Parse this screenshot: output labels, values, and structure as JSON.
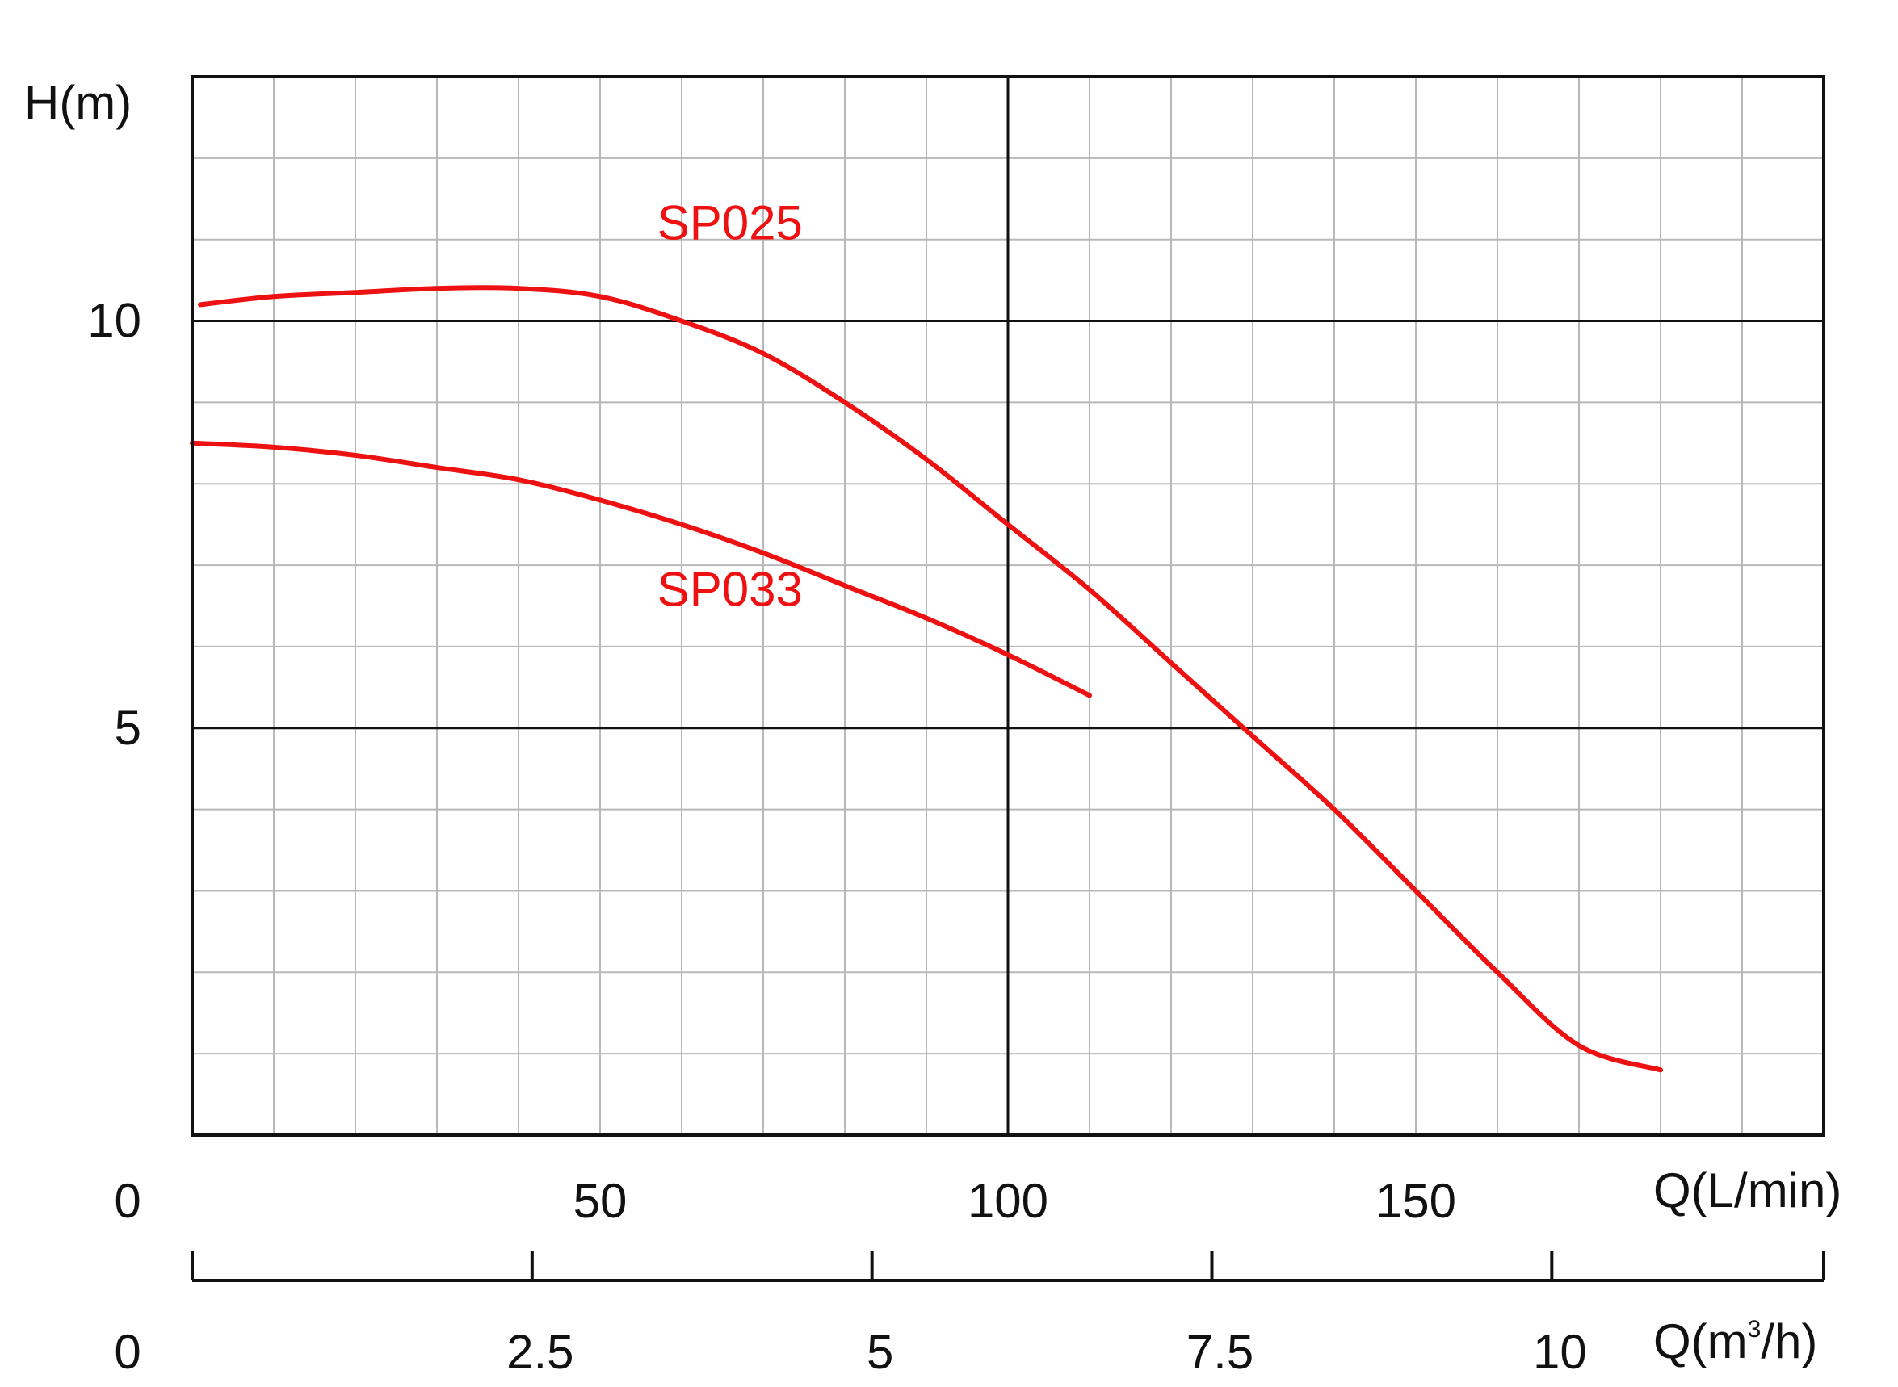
{
  "chart_data": {
    "type": "line",
    "y_axis_label": "H(m)",
    "x_axis_label": "Q(L/min)",
    "secondary_x_axis_label_prefix": "Q(m",
    "secondary_x_axis_label_sup": "3",
    "secondary_x_axis_label_suffix": "/h)",
    "x_range": [
      0,
      200
    ],
    "y_range": [
      0,
      13
    ],
    "x_minor_step": 10,
    "y_minor_step": 1,
    "x_major_lines": [
      100
    ],
    "y_major_lines": [
      5,
      10
    ],
    "x_tick_labels": [
      {
        "value": 0,
        "label": "0"
      },
      {
        "value": 50,
        "label": "50"
      },
      {
        "value": 100,
        "label": "100"
      },
      {
        "value": 150,
        "label": "150"
      }
    ],
    "y_tick_labels": [
      {
        "value": 10,
        "label": "10"
      },
      {
        "value": 5,
        "label": "5"
      }
    ],
    "secondary_ticks": [
      {
        "value": 0,
        "label": "0"
      },
      {
        "value": 2.5,
        "label": "2.5"
      },
      {
        "value": 5,
        "label": "5"
      },
      {
        "value": 7.5,
        "label": "7.5"
      },
      {
        "value": 10,
        "label": "10"
      }
    ],
    "secondary_range_max": 12,
    "grid": true,
    "series": [
      {
        "name": "SP025",
        "color": "#ee1111",
        "x": [
          1,
          10,
          20,
          30,
          40,
          50,
          60,
          70,
          80,
          90,
          100,
          110,
          120,
          130,
          140,
          150,
          160,
          170,
          180
        ],
        "y": [
          10.2,
          10.3,
          10.35,
          10.4,
          10.4,
          10.3,
          10.0,
          9.6,
          9.0,
          8.3,
          7.5,
          6.7,
          5.8,
          4.9,
          4.0,
          3.0,
          2.0,
          1.1,
          0.8
        ]
      },
      {
        "name": "SP033",
        "color": "#ee1111",
        "x": [
          0,
          10,
          20,
          30,
          40,
          50,
          60,
          70,
          80,
          90,
          100,
          110
        ],
        "y": [
          8.5,
          8.45,
          8.35,
          8.2,
          8.05,
          7.8,
          7.5,
          7.15,
          6.75,
          6.35,
          5.9,
          5.4
        ]
      }
    ],
    "annotations": [
      {
        "text": "SP025",
        "x": 57,
        "y": 11
      },
      {
        "text": "SP033",
        "x": 57,
        "y": 6.5
      }
    ]
  }
}
